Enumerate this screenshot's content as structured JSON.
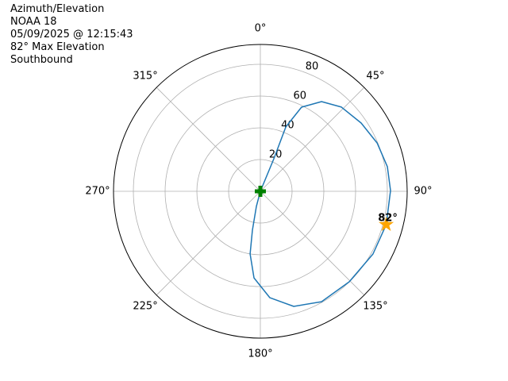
{
  "chart_data": {
    "type": "polar",
    "title_lines": [
      "Azimuth/Elevation",
      "NOAA 18",
      "05/09/2025 @ 12:15:43",
      "82° Max Elevation",
      "Southbound"
    ],
    "theta_direction": "clockwise",
    "theta_zero": "N",
    "thetaticks": [
      {
        "value": 0,
        "label": "0°"
      },
      {
        "value": 45,
        "label": "45°"
      },
      {
        "value": 90,
        "label": "90°"
      },
      {
        "value": 135,
        "label": "135°"
      },
      {
        "value": 180,
        "label": "180°"
      },
      {
        "value": 225,
        "label": "225°"
      },
      {
        "value": 270,
        "label": "270°"
      },
      {
        "value": 315,
        "label": "315°"
      }
    ],
    "rlim": [
      0,
      92.5
    ],
    "rticks": [
      20,
      40,
      60,
      80
    ],
    "grid": true,
    "series": [
      {
        "color": "#1f77b4",
        "theta": [
          0,
          22.5,
          21.6,
          26.1,
          34.3,
          43.9,
          55.9,
          67.5,
          79.0,
          89.7,
          104.8,
          119.1,
          135.5,
          151.0,
          163.8,
          174.9,
          184.2,
          189.3,
          191.5,
          194.7,
          0
        ],
        "r": [
          0,
          22.2,
          43.6,
          59.0,
          68.4,
          73.6,
          76.7,
          79.6,
          81.5,
          82,
          82,
          81.2,
          79.9,
          79.5,
          75.5,
          67.3,
          54.7,
          40,
          25,
          9.8,
          0
        ]
      }
    ],
    "max_point": {
      "theta": 104.8,
      "r": 82,
      "value_label": "82°",
      "color": "#ffa500"
    },
    "start_point": {
      "theta": 0,
      "r": 0,
      "color": "#008000"
    }
  }
}
